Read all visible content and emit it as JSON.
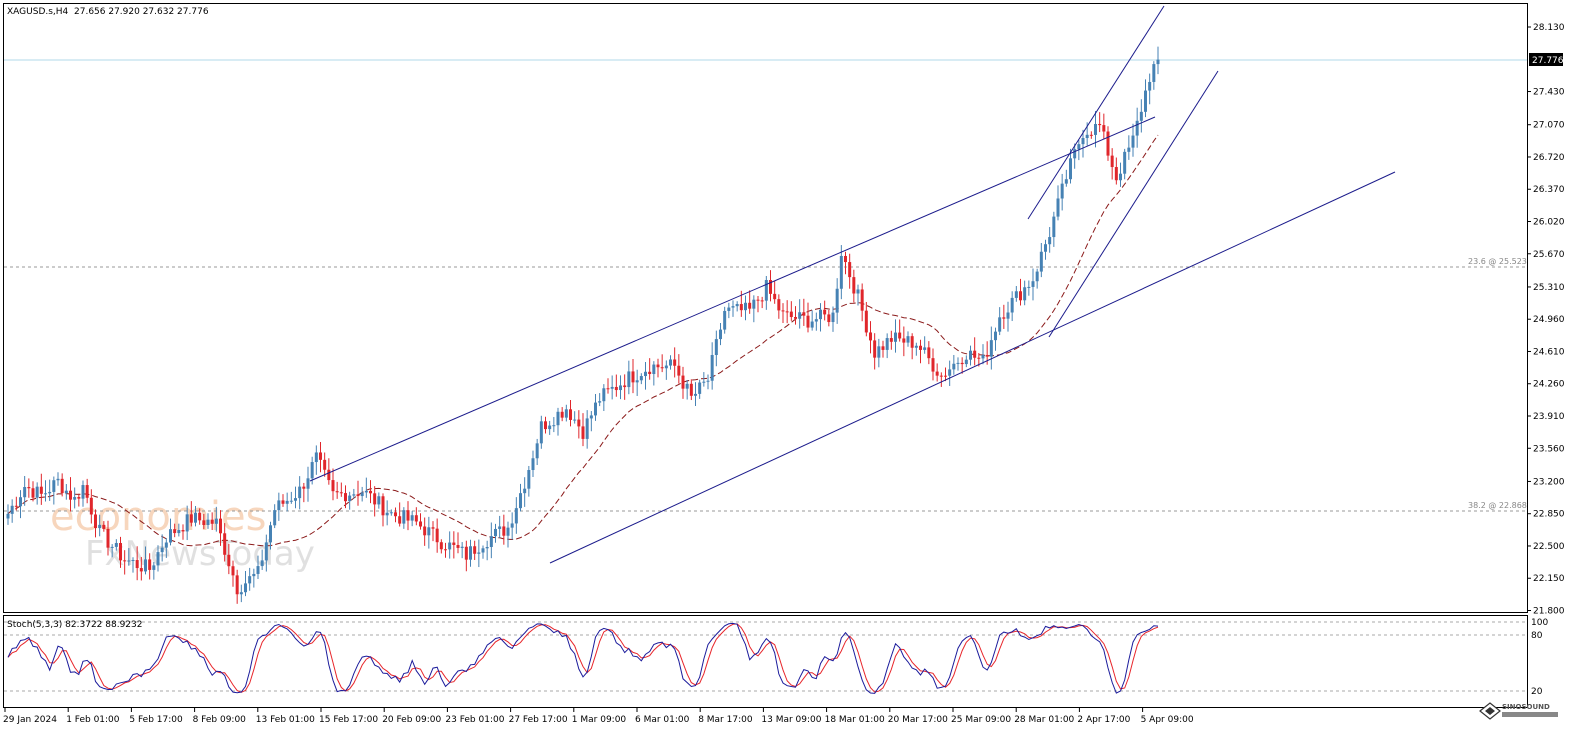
{
  "header": {
    "symbol": "XAGUSD.s,H4",
    "ohlc": "27.656 27.920 27.632 27.776"
  },
  "watermark": {
    "brand": "economies",
    "sub": "FxNewsToday"
  },
  "price_axis": {
    "ticks": [
      "28.130",
      "27.430",
      "27.070",
      "26.720",
      "26.370",
      "26.020",
      "25.670",
      "25.310",
      "24.960",
      "24.610",
      "24.260",
      "23.910",
      "23.560",
      "23.200",
      "22.850",
      "22.500",
      "22.150",
      "21.800"
    ],
    "current_price": "27.776"
  },
  "fib_levels": [
    {
      "label": "23.6 @ 25.523",
      "price": 25.523
    },
    {
      "label": "38.2 @ 22.868",
      "price": 22.868
    }
  ],
  "stoch": {
    "label": "Stoch(5,3,3) 82.3722 88.9232",
    "levels": [
      "100",
      "80",
      "20"
    ]
  },
  "time_axis": [
    "29 Jan 2024",
    "1 Feb 01:00",
    "5 Feb 17:00",
    "8 Feb 09:00",
    "13 Feb 01:00",
    "15 Feb 17:00",
    "20 Feb 09:00",
    "23 Feb 01:00",
    "27 Feb 17:00",
    "1 Mar 09:00",
    "6 Mar 01:00",
    "8 Mar 17:00",
    "13 Mar 09:00",
    "18 Mar 01:00",
    "20 Mar 17:00",
    "25 Mar 09:00",
    "28 Mar 01:00",
    "2 Apr 17:00",
    "5 Apr 09:00"
  ],
  "logo": {
    "text": "SINOSOUND"
  },
  "colors": {
    "bull": "#4682b4",
    "bear": "#e0262b",
    "trendline": "#1c1c8c",
    "ma": "#8b1a1a",
    "stoch_main": "#1c1c9c",
    "stoch_signal": "#e8262b"
  },
  "chart_data": {
    "type": "candlestick",
    "symbol": "XAGUSD.s",
    "timeframe": "H4",
    "ylim": [
      21.8,
      28.3
    ],
    "anchors": [
      {
        "t": 0,
        "p": 22.85
      },
      {
        "t": 4,
        "p": 23.15
      },
      {
        "t": 8,
        "p": 23.05
      },
      {
        "t": 12,
        "p": 23.2
      },
      {
        "t": 16,
        "p": 23.0
      },
      {
        "t": 18,
        "p": 23.15
      },
      {
        "t": 22,
        "p": 22.65
      },
      {
        "t": 28,
        "p": 22.35
      },
      {
        "t": 34,
        "p": 22.25
      },
      {
        "t": 38,
        "p": 22.6
      },
      {
        "t": 44,
        "p": 22.8
      },
      {
        "t": 50,
        "p": 22.75
      },
      {
        "t": 55,
        "p": 22.05
      },
      {
        "t": 60,
        "p": 22.2
      },
      {
        "t": 64,
        "p": 22.9
      },
      {
        "t": 70,
        "p": 23.1
      },
      {
        "t": 74,
        "p": 23.45
      },
      {
        "t": 78,
        "p": 23.05
      },
      {
        "t": 85,
        "p": 23.1
      },
      {
        "t": 92,
        "p": 22.85
      },
      {
        "t": 98,
        "p": 22.75
      },
      {
        "t": 104,
        "p": 22.55
      },
      {
        "t": 110,
        "p": 22.4
      },
      {
        "t": 114,
        "p": 22.55
      },
      {
        "t": 120,
        "p": 22.7
      },
      {
        "t": 124,
        "p": 23.2
      },
      {
        "t": 128,
        "p": 23.8
      },
      {
        "t": 134,
        "p": 24.0
      },
      {
        "t": 138,
        "p": 23.75
      },
      {
        "t": 142,
        "p": 24.1
      },
      {
        "t": 148,
        "p": 24.3
      },
      {
        "t": 154,
        "p": 24.45
      },
      {
        "t": 160,
        "p": 24.45
      },
      {
        "t": 164,
        "p": 24.1
      },
      {
        "t": 168,
        "p": 24.3
      },
      {
        "t": 172,
        "p": 25.05
      },
      {
        "t": 178,
        "p": 25.05
      },
      {
        "t": 182,
        "p": 25.3
      },
      {
        "t": 186,
        "p": 25.0
      },
      {
        "t": 192,
        "p": 24.95
      },
      {
        "t": 198,
        "p": 25.0
      },
      {
        "t": 200,
        "p": 25.7
      },
      {
        "t": 204,
        "p": 25.2
      },
      {
        "t": 208,
        "p": 24.6
      },
      {
        "t": 212,
        "p": 24.75
      },
      {
        "t": 218,
        "p": 24.7
      },
      {
        "t": 224,
        "p": 24.35
      },
      {
        "t": 230,
        "p": 24.6
      },
      {
        "t": 234,
        "p": 24.5
      },
      {
        "t": 238,
        "p": 25.0
      },
      {
        "t": 242,
        "p": 25.2
      },
      {
        "t": 246,
        "p": 25.4
      },
      {
        "t": 250,
        "p": 25.9
      },
      {
        "t": 254,
        "p": 26.5
      },
      {
        "t": 258,
        "p": 27.0
      },
      {
        "t": 262,
        "p": 27.05
      },
      {
        "t": 266,
        "p": 26.5
      },
      {
        "t": 270,
        "p": 26.9
      },
      {
        "t": 274,
        "p": 27.6
      },
      {
        "t": 276,
        "p": 27.78
      }
    ]
  }
}
